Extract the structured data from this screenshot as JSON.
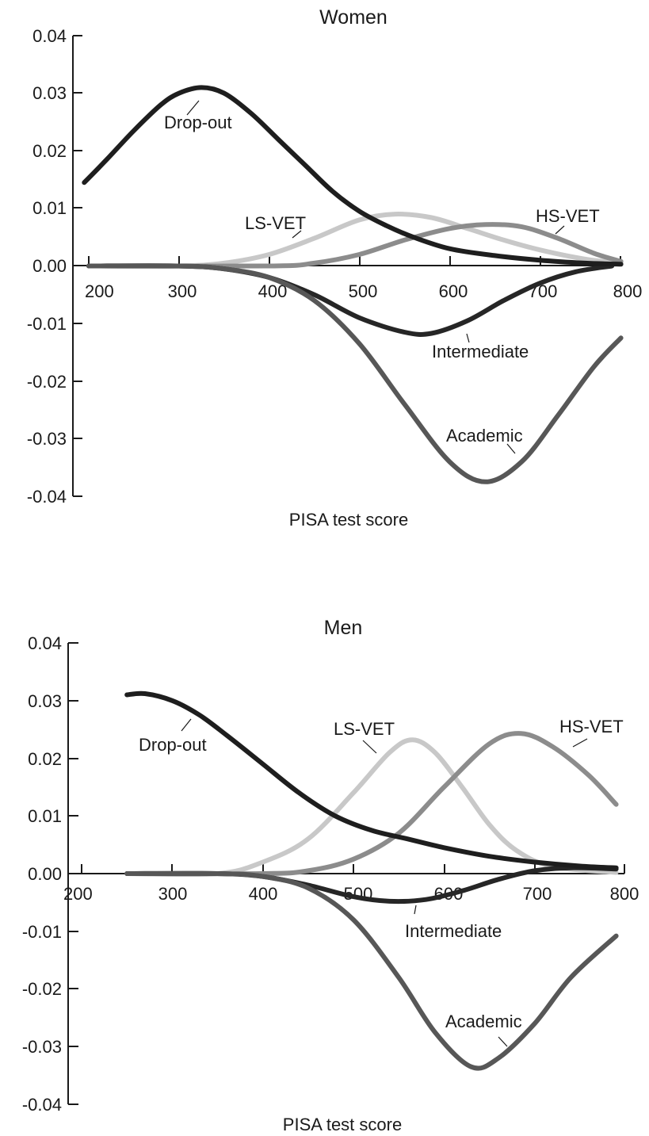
{
  "chart_data": [
    {
      "type": "line",
      "title": "Women",
      "xlabel": "PISA test score",
      "ylabel": "",
      "xlim": [
        200,
        800
      ],
      "ylim": [
        -0.04,
        0.04
      ],
      "x_ticks": [
        "200",
        "300",
        "400",
        "500",
        "600",
        "700",
        "800"
      ],
      "y_ticks": [
        "0.04",
        "0.03",
        "0.02",
        "0.01",
        "0.00",
        "-0.01",
        "-0.02",
        "-0.03",
        "-0.04"
      ],
      "grid": false,
      "legend": "labels on lines",
      "series": [
        {
          "name": "Drop-out",
          "color": "#1e1e1e",
          "points": [
            [
              195,
              0.0145
            ],
            [
              220,
              0.0185
            ],
            [
              250,
              0.0235
            ],
            [
              280,
              0.028
            ],
            [
              300,
              0.03
            ],
            [
              325,
              0.031
            ],
            [
              350,
              0.03
            ],
            [
              380,
              0.0265
            ],
            [
              410,
              0.022
            ],
            [
              440,
              0.0175
            ],
            [
              470,
              0.013
            ],
            [
              500,
              0.0095
            ],
            [
              530,
              0.007
            ],
            [
              560,
              0.005
            ],
            [
              600,
              0.003
            ],
            [
              650,
              0.0018
            ],
            [
              700,
              0.001
            ],
            [
              750,
              0.0005
            ],
            [
              790,
              0.0003
            ]
          ]
        },
        {
          "name": "LS-VET",
          "color": "#c8c8c8",
          "points": [
            [
              200,
              0.0
            ],
            [
              300,
              0.0
            ],
            [
              350,
              0.0005
            ],
            [
              400,
              0.002
            ],
            [
              450,
              0.0048
            ],
            [
              500,
              0.008
            ],
            [
              540,
              0.009
            ],
            [
              580,
              0.0084
            ],
            [
              620,
              0.0065
            ],
            [
              660,
              0.0045
            ],
            [
              700,
              0.0028
            ],
            [
              750,
              0.0012
            ],
            [
              790,
              0.0005
            ]
          ]
        },
        {
          "name": "HS-VET",
          "color": "#8c8c8c",
          "points": [
            [
              200,
              0.0
            ],
            [
              400,
              0.0
            ],
            [
              450,
              0.0005
            ],
            [
              500,
              0.002
            ],
            [
              550,
              0.0045
            ],
            [
              600,
              0.0065
            ],
            [
              640,
              0.0072
            ],
            [
              680,
              0.0068
            ],
            [
              720,
              0.0048
            ],
            [
              760,
              0.0022
            ],
            [
              790,
              0.0008
            ]
          ]
        },
        {
          "name": "Intermediate",
          "color": "#262626",
          "points": [
            [
              200,
              0.0
            ],
            [
              300,
              0.0
            ],
            [
              350,
              -0.0005
            ],
            [
              400,
              -0.002
            ],
            [
              450,
              -0.005
            ],
            [
              500,
              -0.009
            ],
            [
              550,
              -0.0115
            ],
            [
              580,
              -0.0117
            ],
            [
              620,
              -0.0095
            ],
            [
              660,
              -0.006
            ],
            [
              700,
              -0.003
            ],
            [
              740,
              -0.001
            ],
            [
              780,
              0.0
            ]
          ]
        },
        {
          "name": "Academic",
          "color": "#575757",
          "points": [
            [
              200,
              0.0
            ],
            [
              300,
              0.0
            ],
            [
              350,
              -0.0005
            ],
            [
              400,
              -0.002
            ],
            [
              450,
              -0.006
            ],
            [
              500,
              -0.0135
            ],
            [
              550,
              -0.024
            ],
            [
              600,
              -0.034
            ],
            [
              640,
              -0.0375
            ],
            [
              680,
              -0.034
            ],
            [
              720,
              -0.026
            ],
            [
              760,
              -0.0175
            ],
            [
              790,
              -0.0125
            ]
          ]
        }
      ]
    },
    {
      "type": "line",
      "title": "Men",
      "xlabel": "PISA test score",
      "ylabel": "",
      "xlim": [
        200,
        800
      ],
      "ylim": [
        -0.04,
        0.04
      ],
      "x_ticks": [
        "200",
        "300",
        "400",
        "500",
        "600",
        "700",
        "800"
      ],
      "y_ticks": [
        "0.04",
        "0.03",
        "0.02",
        "0.01",
        "0.00",
        "-0.01",
        "-0.02",
        "-0.03",
        "-0.04"
      ],
      "grid": false,
      "legend": "labels on lines",
      "series": [
        {
          "name": "Drop-out",
          "color": "#1e1e1e",
          "points": [
            [
              250,
              0.031
            ],
            [
              270,
              0.0312
            ],
            [
              300,
              0.03
            ],
            [
              330,
              0.0275
            ],
            [
              360,
              0.024
            ],
            [
              400,
              0.019
            ],
            [
              440,
              0.014
            ],
            [
              480,
              0.01
            ],
            [
              520,
              0.0075
            ],
            [
              560,
              0.006
            ],
            [
              600,
              0.0045
            ],
            [
              650,
              0.003
            ],
            [
              700,
              0.002
            ],
            [
              750,
              0.0013
            ],
            [
              790,
              0.001
            ]
          ]
        },
        {
          "name": "LS-VET",
          "color": "#c8c8c8",
          "points": [
            [
              250,
              0.0
            ],
            [
              350,
              0.0
            ],
            [
              400,
              0.002
            ],
            [
              450,
              0.006
            ],
            [
              500,
              0.014
            ],
            [
              540,
              0.021
            ],
            [
              565,
              0.0232
            ],
            [
              590,
              0.021
            ],
            [
              620,
              0.015
            ],
            [
              650,
              0.0085
            ],
            [
              680,
              0.004
            ],
            [
              720,
              0.0012
            ],
            [
              790,
              0.0002
            ]
          ]
        },
        {
          "name": "HS-VET",
          "color": "#8c8c8c",
          "points": [
            [
              250,
              0.0
            ],
            [
              400,
              0.0
            ],
            [
              450,
              0.0005
            ],
            [
              500,
              0.0025
            ],
            [
              550,
              0.007
            ],
            [
              600,
              0.015
            ],
            [
              650,
              0.0225
            ],
            [
              685,
              0.0243
            ],
            [
              720,
              0.022
            ],
            [
              760,
              0.017
            ],
            [
              790,
              0.012
            ]
          ]
        },
        {
          "name": "Intermediate",
          "color": "#262626",
          "points": [
            [
              250,
              0.0
            ],
            [
              350,
              0.0
            ],
            [
              400,
              -0.0005
            ],
            [
              450,
              -0.002
            ],
            [
              500,
              -0.004
            ],
            [
              540,
              -0.0048
            ],
            [
              580,
              -0.0045
            ],
            [
              620,
              -0.003
            ],
            [
              660,
              -0.001
            ],
            [
              700,
              0.0005
            ],
            [
              740,
              0.001
            ],
            [
              790,
              0.0008
            ]
          ]
        },
        {
          "name": "Academic",
          "color": "#575757",
          "points": [
            [
              250,
              0.0
            ],
            [
              350,
              0.0
            ],
            [
              400,
              -0.0005
            ],
            [
              450,
              -0.0025
            ],
            [
              500,
              -0.008
            ],
            [
              550,
              -0.018
            ],
            [
              590,
              -0.0275
            ],
            [
              630,
              -0.0335
            ],
            [
              660,
              -0.032
            ],
            [
              700,
              -0.026
            ],
            [
              740,
              -0.018
            ],
            [
              790,
              -0.0108
            ]
          ]
        }
      ]
    }
  ]
}
